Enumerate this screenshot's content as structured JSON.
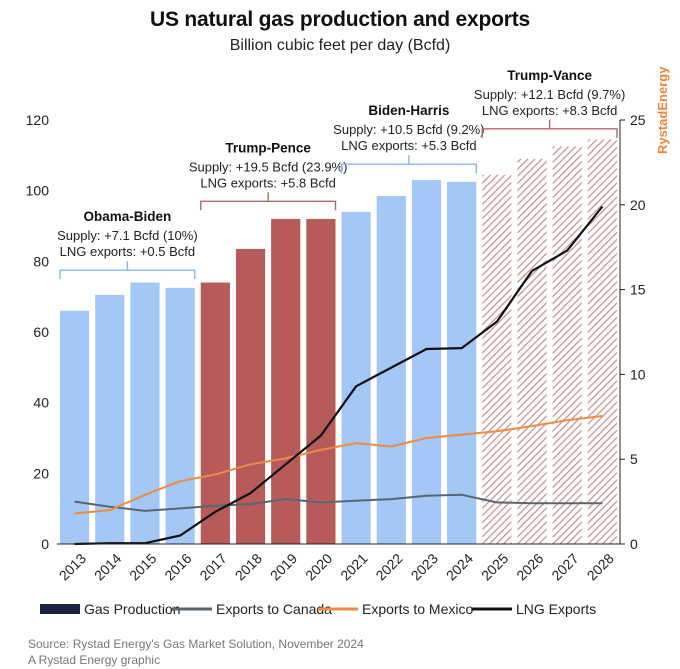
{
  "header": {
    "title": "US natural gas production and exports",
    "subtitle": "Billion cubic feet per day (Bcfd)"
  },
  "brand": {
    "text": "RystadEnergy",
    "color": "#e8863a"
  },
  "footer": {
    "source": "Source: Rystad Energy's Gas Market Solution, November 2024",
    "credit": "A Rystad Energy graphic"
  },
  "colors": {
    "blue": "#a4c8f5",
    "red": "#b65a5a",
    "hatch": "#c48d8d",
    "navy": "#1a2142",
    "canada": "#5a6571",
    "mexico": "#eb8b45",
    "lng": "#111111",
    "bracket_blue": "#8ab6ec",
    "bracket_red": "#b56868"
  },
  "chart_data": {
    "type": "bar",
    "categories": [
      "2013",
      "2014",
      "2015",
      "2016",
      "2017",
      "2018",
      "2019",
      "2020",
      "2021",
      "2022",
      "2023",
      "2024",
      "2025",
      "2026",
      "2027",
      "2028"
    ],
    "y_left": {
      "min": 0,
      "max": 120,
      "ticks": [
        "0",
        "20",
        "40",
        "60",
        "80",
        "100",
        "120"
      ],
      "tick_values": [
        0,
        20,
        40,
        60,
        80,
        100,
        120
      ]
    },
    "y_right": {
      "min": 0,
      "max": 25,
      "ticks": [
        "0",
        "5",
        "10",
        "15",
        "20",
        "25"
      ],
      "tick_values": [
        0,
        5,
        10,
        15,
        20,
        25
      ]
    },
    "production": {
      "name": "Gas Production",
      "values": [
        66,
        70.5,
        74,
        72.5,
        74,
        83.5,
        92,
        92,
        94,
        98.5,
        103,
        102.5,
        104.5,
        109,
        112.5,
        114.5
      ],
      "style": [
        "blue",
        "blue",
        "blue",
        "blue",
        "red",
        "red",
        "red",
        "red",
        "blue",
        "blue",
        "blue",
        "blue",
        "hatch",
        "hatch",
        "hatch",
        "hatch"
      ]
    },
    "series": [
      {
        "name": "Exports to Canada",
        "axis": "right",
        "color_key": "canada",
        "values": [
          2.5,
          2.2,
          1.95,
          2.1,
          2.25,
          2.35,
          2.65,
          2.45,
          2.55,
          2.65,
          2.85,
          2.9,
          2.45,
          2.4,
          2.4,
          2.4
        ]
      },
      {
        "name": "Exports to Mexico",
        "axis": "right",
        "color_key": "mexico",
        "values": [
          1.8,
          2.0,
          2.9,
          3.7,
          4.1,
          4.7,
          5.05,
          5.55,
          5.95,
          5.75,
          6.25,
          6.45,
          6.65,
          6.95,
          7.3,
          7.55
        ]
      },
      {
        "name": "LNG Exports",
        "axis": "right",
        "color_key": "lng",
        "values": [
          0.0,
          0.05,
          0.05,
          0.5,
          1.9,
          3.0,
          4.7,
          6.4,
          9.3,
          10.4,
          11.5,
          11.55,
          13.1,
          16.1,
          17.3,
          19.9
        ]
      }
    ],
    "legend": [
      {
        "label": "Gas Production",
        "kind": "box",
        "color_key": "navy"
      },
      {
        "label": "Exports to Canada",
        "kind": "line",
        "color_key": "canada"
      },
      {
        "label": "Exports to Mexico",
        "kind": "line",
        "color_key": "mexico"
      },
      {
        "label": "LNG Exports",
        "kind": "line",
        "color_key": "lng"
      }
    ],
    "annotations": [
      {
        "name": "Obama-Biden",
        "color_key": "bracket_blue",
        "from": 0,
        "to": 3,
        "level": 77.5,
        "lines": [
          "Supply: +7.1 Bcfd (10%)",
          "LNG exports: +0.5 Bcfd"
        ]
      },
      {
        "name": "Trump-Pence",
        "color_key": "bracket_red",
        "from": 4,
        "to": 7,
        "level": 97,
        "lines": [
          "Supply: +19.5 Bcfd (23.9%)",
          "LNG exports: +5.8 Bcfd"
        ]
      },
      {
        "name": "Biden-Harris",
        "color_key": "bracket_blue",
        "from": 8,
        "to": 11,
        "level": 107.5,
        "lines": [
          "Supply: +10.5 Bcfd (9.2%)",
          "LNG exports: +5.3 Bcfd"
        ]
      },
      {
        "name": "Trump-Vance",
        "color_key": "bracket_red",
        "from": 12,
        "to": 15,
        "level": 117.5,
        "lines": [
          "Supply: +12.1 Bcfd (9.7%)",
          "LNG exports: +8.3 Bcfd"
        ]
      }
    ]
  }
}
